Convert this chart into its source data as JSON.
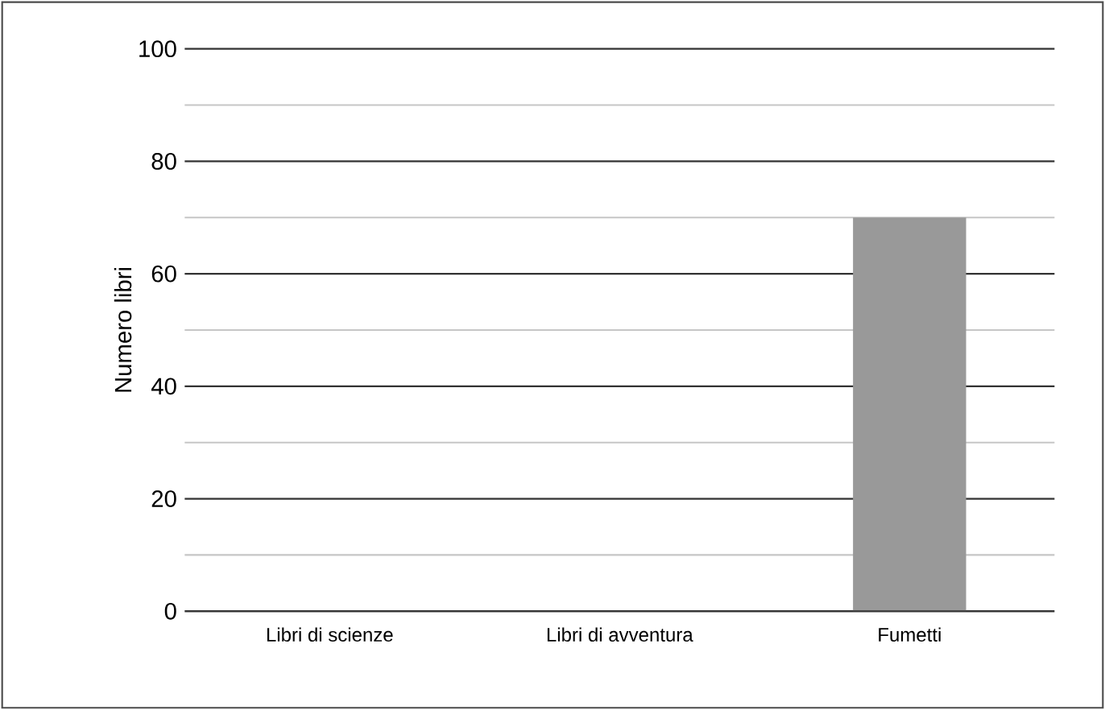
{
  "chart_data": {
    "type": "bar",
    "ylabel": "Numero libri",
    "categories": [
      "Libri di scienze",
      "Libri di avventura",
      "Fumetti"
    ],
    "values": [
      0,
      0,
      70
    ],
    "color": "#999999",
    "ylim": [
      0,
      100
    ],
    "yticks": [
      0,
      {
        "value": 10,
        "label": null
      },
      20,
      {
        "value": 30,
        "label": null
      },
      40,
      {
        "value": 50,
        "label": null
      },
      60,
      {
        "value": 70,
        "label": null
      },
      80,
      {
        "value": 90,
        "label": null
      },
      100
    ],
    "grid": "y"
  }
}
